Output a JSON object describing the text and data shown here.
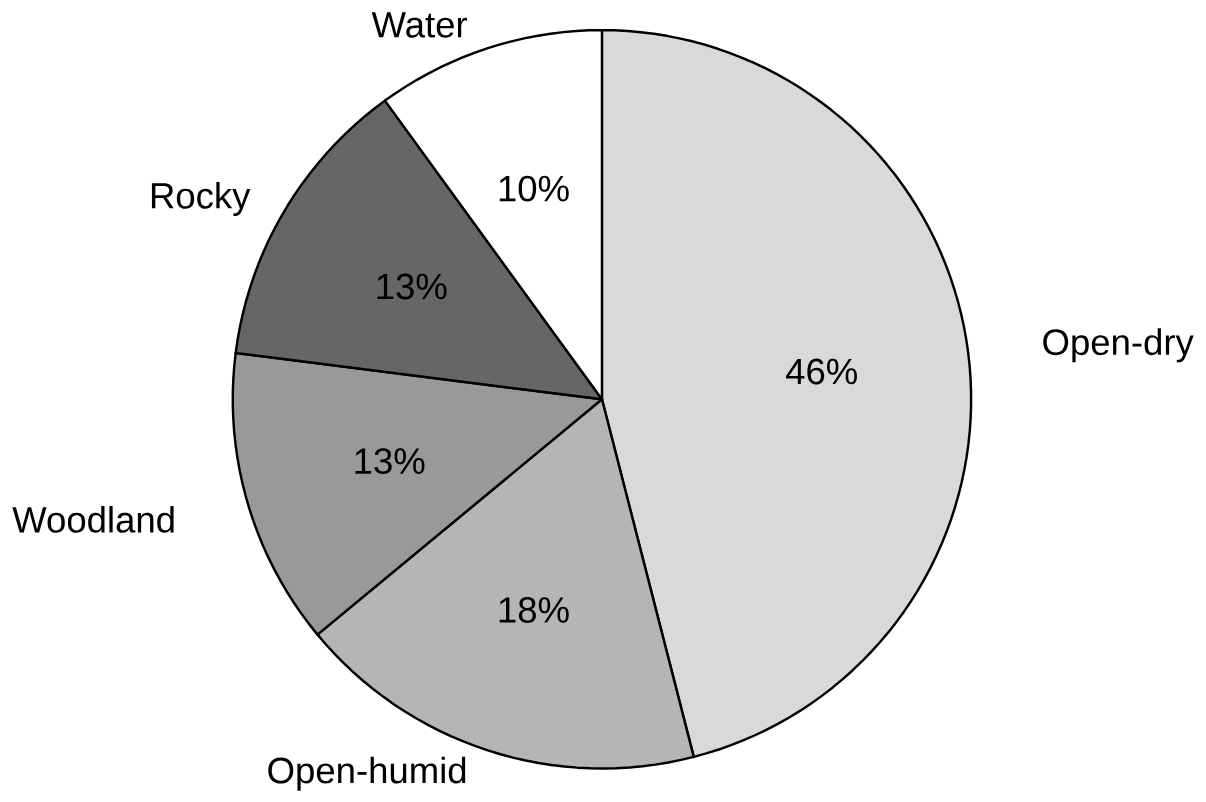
{
  "chart_data": {
    "type": "pie",
    "categories": [
      "Open-dry",
      "Open-humid",
      "Woodland",
      "Rocky",
      "Water"
    ],
    "values": [
      46,
      18,
      13,
      13,
      10
    ],
    "colors": [
      "#d9d9d9",
      "#b5b5b5",
      "#999999",
      "#666666",
      "#ffffff"
    ],
    "value_labels": [
      "46%",
      "18%",
      "13%",
      "13%",
      "10%"
    ]
  }
}
